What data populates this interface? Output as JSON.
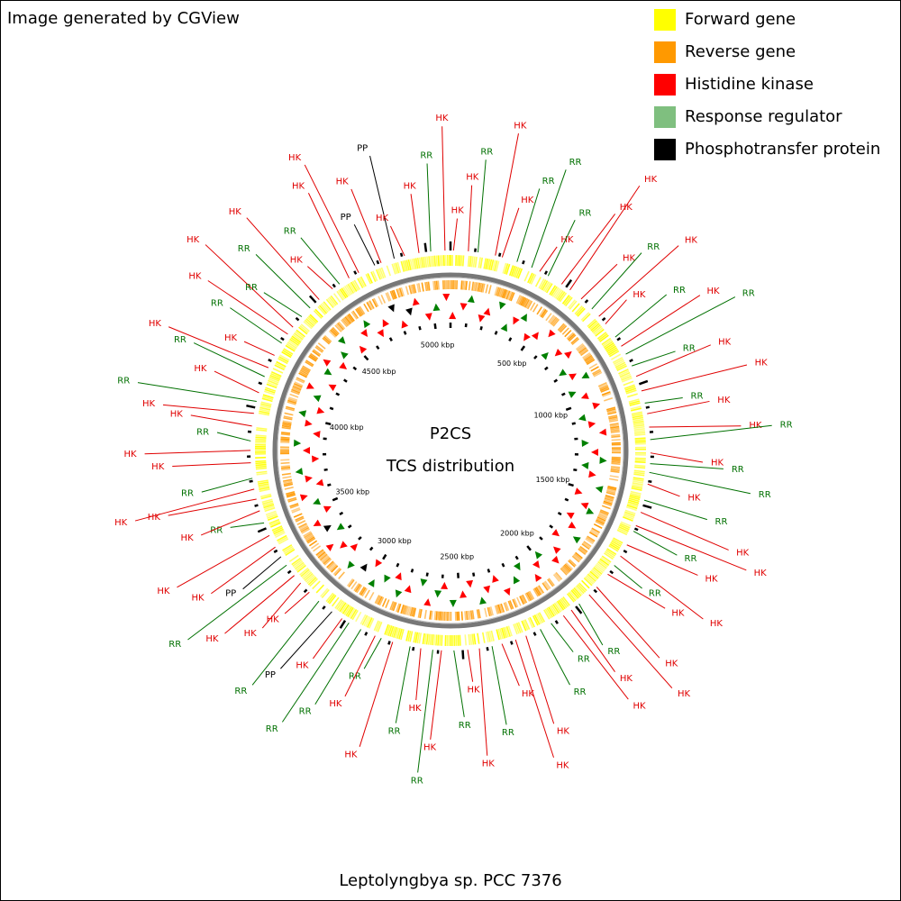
{
  "header": {
    "title": "Image generated by CGView"
  },
  "legend": [
    {
      "label": "Forward gene",
      "color": "#ffff00"
    },
    {
      "label": "Reverse gene",
      "color": "#ff9900"
    },
    {
      "label": "Histidine kinase",
      "color": "#ff0000"
    },
    {
      "label": "Response regulator",
      "color": "#7fbf7f"
    },
    {
      "label": "Phosphotransfer protein",
      "color": "#000000"
    }
  ],
  "center": {
    "line1": "P2CS",
    "line2": "TCS distribution"
  },
  "scale_labels": [
    "500 kbp",
    "1000 kbp",
    "1500 kbp",
    "2000 kbp",
    "2500 kbp",
    "3000 kbp",
    "3500 kbp",
    "4000 kbp",
    "4500 kbp",
    "5000 kbp"
  ],
  "features": [
    {
      "label": "HK",
      "color": "#e00000"
    },
    {
      "label": "HK",
      "color": "#e00000"
    },
    {
      "label": "RR",
      "color": "#007000"
    },
    {
      "label": "HK",
      "color": "#e00000"
    },
    {
      "label": "HK",
      "color": "#e00000"
    },
    {
      "label": "RR",
      "color": "#007000"
    },
    {
      "label": "RR",
      "color": "#007000"
    },
    {
      "label": "HK",
      "color": "#e00000"
    },
    {
      "label": "RR",
      "color": "#007000"
    },
    {
      "label": "HK",
      "color": "#e00000"
    },
    {
      "label": "HK",
      "color": "#e00000"
    },
    {
      "label": "HK",
      "color": "#e00000"
    },
    {
      "label": "RR",
      "color": "#007000"
    },
    {
      "label": "HK",
      "color": "#e00000"
    },
    {
      "label": "HK",
      "color": "#e00000"
    },
    {
      "label": "RR",
      "color": "#007000"
    },
    {
      "label": "HK",
      "color": "#e00000"
    },
    {
      "label": "RR",
      "color": "#007000"
    },
    {
      "label": "RR",
      "color": "#007000"
    },
    {
      "label": "HK",
      "color": "#e00000"
    },
    {
      "label": "HK",
      "color": "#e00000"
    },
    {
      "label": "RR",
      "color": "#007000"
    },
    {
      "label": "HK",
      "color": "#e00000"
    },
    {
      "label": "HK",
      "color": "#e00000"
    },
    {
      "label": "RR",
      "color": "#007000"
    },
    {
      "label": "HK",
      "color": "#e00000"
    },
    {
      "label": "RR",
      "color": "#007000"
    },
    {
      "label": "RR",
      "color": "#007000"
    },
    {
      "label": "HK",
      "color": "#e00000"
    },
    {
      "label": "RR",
      "color": "#007000"
    },
    {
      "label": "HK",
      "color": "#e00000"
    },
    {
      "label": "HK",
      "color": "#e00000"
    },
    {
      "label": "RR",
      "color": "#007000"
    },
    {
      "label": "HK",
      "color": "#e00000"
    },
    {
      "label": "HK",
      "color": "#e00000"
    },
    {
      "label": "RR",
      "color": "#007000"
    },
    {
      "label": "HK",
      "color": "#e00000"
    },
    {
      "label": "HK",
      "color": "#e00000"
    },
    {
      "label": "HK",
      "color": "#e00000"
    },
    {
      "label": "RR",
      "color": "#007000"
    },
    {
      "label": "HK",
      "color": "#e00000"
    },
    {
      "label": "HK",
      "color": "#e00000"
    },
    {
      "label": "RR",
      "color": "#007000"
    },
    {
      "label": "RR",
      "color": "#007000"
    },
    {
      "label": "HK",
      "color": "#e00000"
    },
    {
      "label": "HK",
      "color": "#e00000"
    },
    {
      "label": "HK",
      "color": "#e00000"
    },
    {
      "label": "RR",
      "color": "#007000"
    },
    {
      "label": "HK",
      "color": "#e00000"
    },
    {
      "label": "HK",
      "color": "#e00000"
    },
    {
      "label": "RR",
      "color": "#007000"
    },
    {
      "label": "HK",
      "color": "#e00000"
    },
    {
      "label": "RR",
      "color": "#007000"
    },
    {
      "label": "HK",
      "color": "#e00000"
    },
    {
      "label": "RR",
      "color": "#007000"
    },
    {
      "label": "HK",
      "color": "#e00000"
    },
    {
      "label": "RR",
      "color": "#007000"
    },
    {
      "label": "HK",
      "color": "#e00000"
    },
    {
      "label": "RR",
      "color": "#007000"
    },
    {
      "label": "RR",
      "color": "#007000"
    },
    {
      "label": "HK",
      "color": "#e00000"
    },
    {
      "label": "PP",
      "color": "#000000"
    },
    {
      "label": "RR",
      "color": "#007000"
    },
    {
      "label": "HK",
      "color": "#e00000"
    },
    {
      "label": "HK",
      "color": "#e00000"
    },
    {
      "label": "HK",
      "color": "#e00000"
    },
    {
      "label": "RR",
      "color": "#007000"
    },
    {
      "label": "PP",
      "color": "#000000"
    },
    {
      "label": "HK",
      "color": "#e00000"
    },
    {
      "label": "HK",
      "color": "#e00000"
    },
    {
      "label": "RR",
      "color": "#007000"
    },
    {
      "label": "HK",
      "color": "#e00000"
    },
    {
      "label": "HK",
      "color": "#e00000"
    },
    {
      "label": "HK",
      "color": "#e00000"
    },
    {
      "label": "RR",
      "color": "#007000"
    },
    {
      "label": "HK",
      "color": "#e00000"
    },
    {
      "label": "HK",
      "color": "#e00000"
    },
    {
      "label": "RR",
      "color": "#007000"
    },
    {
      "label": "HK",
      "color": "#e00000"
    },
    {
      "label": "HK",
      "color": "#e00000"
    },
    {
      "label": "RR",
      "color": "#007000"
    },
    {
      "label": "HK",
      "color": "#e00000"
    },
    {
      "label": "RR",
      "color": "#007000"
    },
    {
      "label": "HK",
      "color": "#e00000"
    },
    {
      "label": "HK",
      "color": "#e00000"
    },
    {
      "label": "RR",
      "color": "#007000"
    },
    {
      "label": "HK",
      "color": "#e00000"
    },
    {
      "label": "HK",
      "color": "#e00000"
    },
    {
      "label": "RR",
      "color": "#007000"
    },
    {
      "label": "RR",
      "color": "#007000"
    },
    {
      "label": "HK",
      "color": "#e00000"
    },
    {
      "label": "HK",
      "color": "#e00000"
    },
    {
      "label": "RR",
      "color": "#007000"
    },
    {
      "label": "HK",
      "color": "#e00000"
    },
    {
      "label": "HK",
      "color": "#e00000"
    },
    {
      "label": "PP",
      "color": "#000000"
    },
    {
      "label": "HK",
      "color": "#e00000"
    },
    {
      "label": "PP",
      "color": "#000000"
    },
    {
      "label": "HK",
      "color": "#e00000"
    },
    {
      "label": "HK",
      "color": "#e00000"
    },
    {
      "label": "RR",
      "color": "#007000"
    },
    {
      "label": "HK",
      "color": "#e00000"
    }
  ],
  "caption": "Leptolyngbya sp. PCC 7376"
}
